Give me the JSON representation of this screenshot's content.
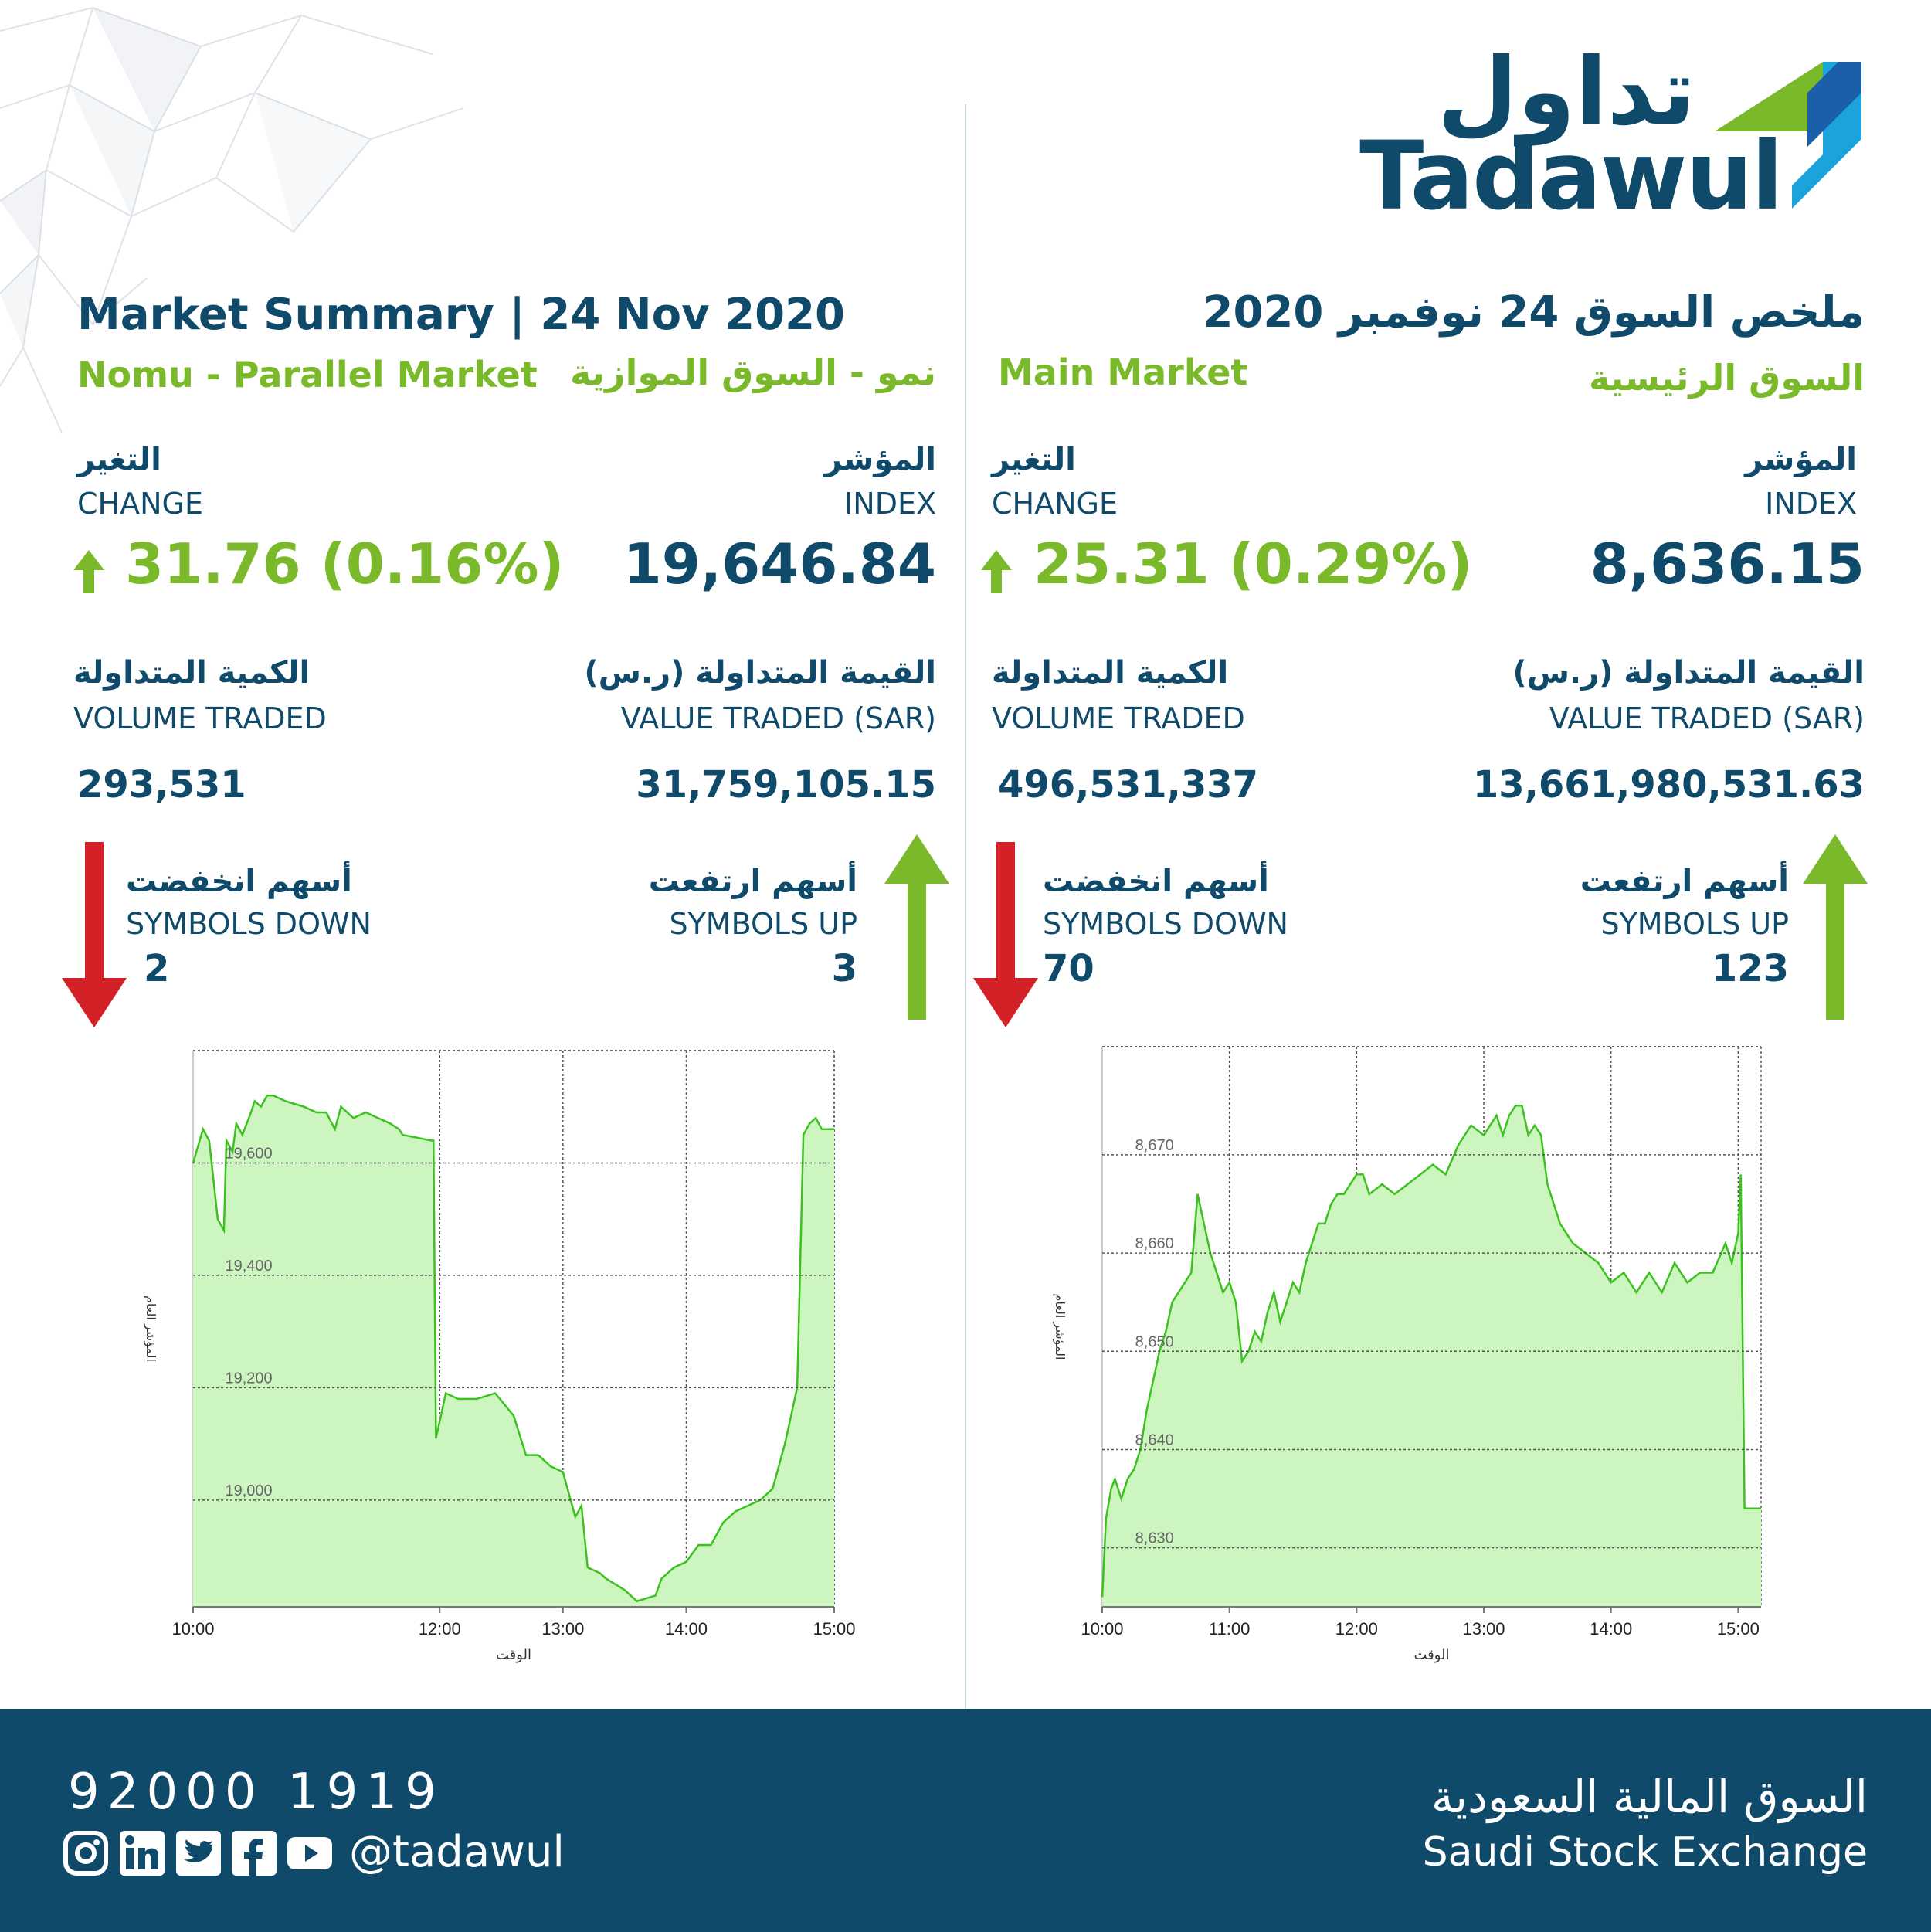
{
  "brand": {
    "logo_ar": "تداول",
    "logo_en": "Tadawul"
  },
  "nomu": {
    "title": "Market Summary | 24 Nov 2020",
    "market_en": "Nomu - Parallel Market",
    "market_ar": "نمو - السوق الموازية",
    "change_ar": "التغير",
    "change_en": "CHANGE",
    "index_ar": "المؤشر",
    "index_en": "INDEX",
    "change_value": "31.76 (0.16%)",
    "index_value": "19,646.84",
    "volume_ar": "الكمية المتداولة",
    "volume_en": "VOLUME TRADED",
    "value_ar": "القيمة المتداولة (ر.س)",
    "value_en": "VALUE TRADED (SAR)",
    "volume_value": "293,531",
    "value_value": "31,759,105.15",
    "down_ar": "أسهم انخفضت",
    "down_en": "SYMBOLS DOWN",
    "down_value": "2",
    "up_ar": "أسهم ارتفعت",
    "up_en": "SYMBOLS UP",
    "up_value": "3"
  },
  "main": {
    "title": "ملخص السوق  24 نوفمبر 2020",
    "market_en": "Main Market",
    "market_ar": "السوق الرئيسية",
    "change_ar": "التغير",
    "change_en": "CHANGE",
    "index_ar": "المؤشر",
    "index_en": "INDEX",
    "change_value": "25.31 (0.29%)",
    "index_value": "8,636.15",
    "volume_ar": "الكمية المتداولة",
    "volume_en": "VOLUME TRADED",
    "value_ar": "القيمة المتداولة (ر.س)",
    "value_en": "VALUE TRADED (SAR)",
    "volume_value": "496,531,337",
    "value_value": "13,661,980,531.63",
    "down_ar": "أسهم انخفضت",
    "down_en": "SYMBOLS DOWN",
    "down_value": "70",
    "up_ar": "أسهم ارتفعت",
    "up_en": "SYMBOLS UP",
    "up_value": "123"
  },
  "footer": {
    "phone": "92000 1919",
    "handle": "@tadawul",
    "exchange_ar": "السوق المالية السعودية",
    "exchange_en": "Saudi Stock Exchange",
    "social_icons": [
      "instagram-icon",
      "linkedin-icon",
      "twitter-icon",
      "facebook-icon",
      "youtube-icon"
    ]
  },
  "colors": {
    "navy": "#0f4a6b",
    "green": "#7ab929",
    "red": "#d42027",
    "line": "#3cc21f",
    "fill": "#ccf5c0"
  },
  "chart_data": [
    {
      "type": "area",
      "xlabel": "الوقت",
      "ylabel": "المؤشر العام",
      "x_ticks": [
        "10:00",
        "12:00",
        "13:00",
        "14:00",
        "15:00"
      ],
      "x_tick_hours": [
        10,
        12,
        13,
        14,
        15.2
      ],
      "x_range": [
        10,
        15.2
      ],
      "y_ticks": [
        19000,
        19200,
        19400,
        19600
      ],
      "y_tick_labels": [
        "19,000",
        "19,200",
        "19,400",
        "19,600"
      ],
      "ylim": [
        18810,
        19800
      ],
      "grid": true,
      "series": [
        {
          "x": [
            10.0,
            10.08,
            10.13,
            10.2,
            10.25,
            10.27,
            10.32,
            10.35,
            10.4,
            10.47,
            10.5,
            10.55,
            10.6,
            10.65,
            10.75,
            10.9,
            11.0,
            11.08,
            11.15,
            11.2,
            11.3,
            11.4,
            11.5,
            11.6,
            11.67,
            11.7,
            11.93,
            11.95,
            11.97,
            12.05,
            12.15,
            12.3,
            12.45,
            12.6,
            12.7,
            12.8,
            12.9,
            13.0,
            13.1,
            13.15,
            13.2,
            13.3,
            13.35,
            13.5,
            13.6,
            13.75,
            13.8,
            13.9,
            14.0,
            14.1,
            14.2,
            14.3,
            14.4,
            14.5,
            14.6,
            14.7,
            14.8,
            14.9,
            14.95,
            15.0,
            15.05,
            15.1,
            15.2
          ],
          "values": [
            19600,
            19660,
            19640,
            19500,
            19480,
            19640,
            19620,
            19670,
            19650,
            19690,
            19710,
            19700,
            19720,
            19720,
            19710,
            19700,
            19690,
            19690,
            19660,
            19700,
            19680,
            19690,
            19680,
            19670,
            19660,
            19650,
            19640,
            19640,
            19110,
            19190,
            19180,
            19180,
            19190,
            19150,
            19080,
            19080,
            19060,
            19050,
            18970,
            18990,
            18880,
            18870,
            18860,
            18840,
            18820,
            18830,
            18860,
            18880,
            18890,
            18920,
            18920,
            18960,
            18980,
            18990,
            19000,
            19020,
            19100,
            19200,
            19650,
            19670,
            19680,
            19660,
            19660
          ]
        }
      ]
    },
    {
      "type": "area",
      "xlabel": "الوقت",
      "ylabel": "المؤشر العام",
      "x_ticks": [
        "10:00",
        "11:00",
        "12:00",
        "13:00",
        "14:00",
        "15:00"
      ],
      "x_tick_hours": [
        10,
        11,
        12,
        13,
        14,
        15
      ],
      "x_range": [
        10,
        15.18
      ],
      "y_ticks": [
        8630,
        8640,
        8650,
        8660,
        8670
      ],
      "y_tick_labels": [
        "8,630",
        "8,640",
        "8,650",
        "8,660",
        "8,670"
      ],
      "ylim": [
        8624,
        8681
      ],
      "grid": true,
      "series": [
        {
          "x": [
            10.0,
            10.03,
            10.07,
            10.1,
            10.15,
            10.2,
            10.25,
            10.3,
            10.35,
            10.4,
            10.45,
            10.5,
            10.55,
            10.6,
            10.65,
            10.7,
            10.75,
            10.8,
            10.85,
            10.9,
            10.95,
            11.0,
            11.05,
            11.1,
            11.15,
            11.2,
            11.25,
            11.3,
            11.35,
            11.4,
            11.45,
            11.5,
            11.55,
            11.6,
            11.65,
            11.7,
            11.75,
            11.8,
            11.85,
            11.9,
            11.95,
            12.0,
            12.05,
            12.1,
            12.2,
            12.3,
            12.4,
            12.5,
            12.6,
            12.7,
            12.8,
            12.9,
            13.0,
            13.05,
            13.1,
            13.15,
            13.2,
            13.25,
            13.3,
            13.35,
            13.4,
            13.45,
            13.5,
            13.6,
            13.7,
            13.8,
            13.9,
            14.0,
            14.1,
            14.2,
            14.3,
            14.4,
            14.5,
            14.6,
            14.7,
            14.8,
            14.9,
            14.95,
            15.0,
            15.02,
            15.05,
            15.18
          ],
          "values": [
            8625,
            8633,
            8636,
            8637,
            8635,
            8637,
            8638,
            8640,
            8644,
            8647,
            8650,
            8652,
            8655,
            8656,
            8657,
            8658,
            8666,
            8663,
            8660,
            8658,
            8656,
            8657,
            8655,
            8649,
            8650,
            8652,
            8651,
            8654,
            8656,
            8653,
            8655,
            8657,
            8656,
            8659,
            8661,
            8663,
            8663,
            8665,
            8666,
            8666,
            8667,
            8668,
            8668,
            8666,
            8667,
            8666,
            8667,
            8668,
            8669,
            8668,
            8671,
            8673,
            8672,
            8673,
            8674,
            8672,
            8674,
            8675,
            8675,
            8672,
            8673,
            8672,
            8667,
            8663,
            8661,
            8660,
            8659,
            8657,
            8658,
            8656,
            8658,
            8656,
            8659,
            8657,
            8658,
            8658,
            8661,
            8659,
            8662,
            8668,
            8634,
            8634
          ]
        }
      ]
    }
  ]
}
